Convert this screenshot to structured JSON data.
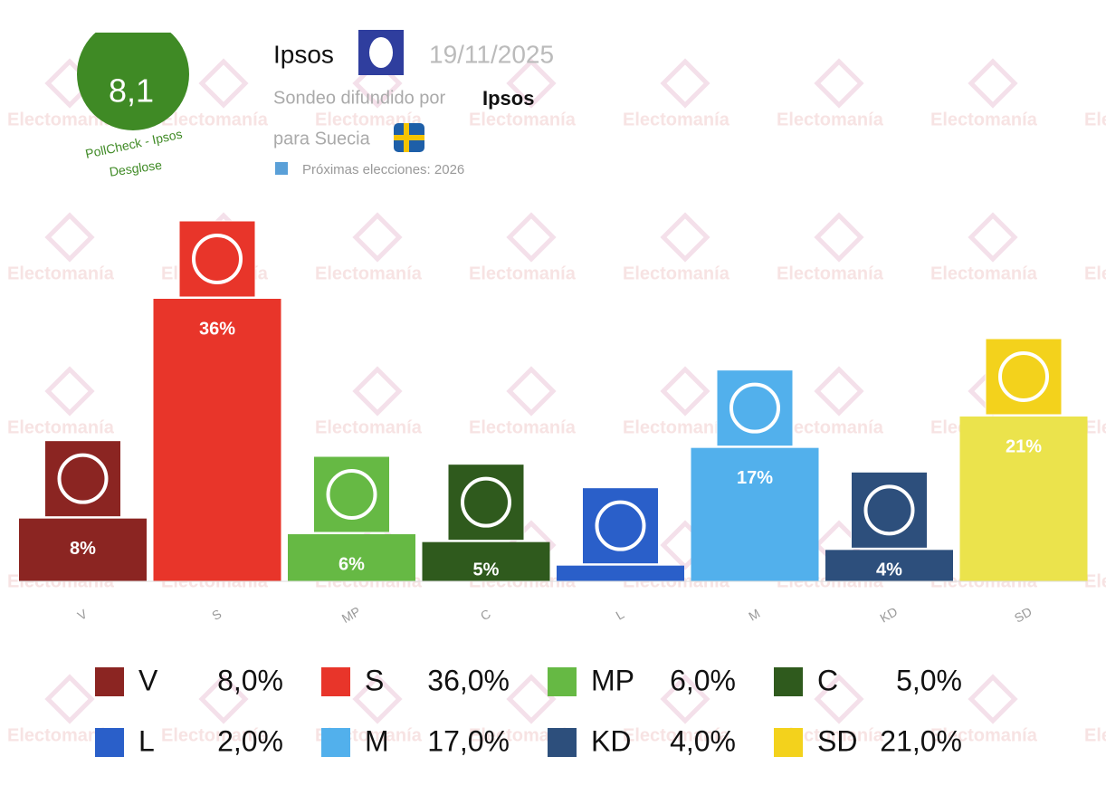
{
  "header": {
    "score": "8,1",
    "score_source": "PollCheck - Ipsos",
    "breakdown": "Desglose",
    "pollster": "Ipsos",
    "date": "19/11/2025",
    "published_by": "Sondeo difundido por",
    "publisher": "Ipsos",
    "country": "para Suecia",
    "next_elections": "Próximas elecciones: 2026"
  },
  "watermark": "Electomanía",
  "chart_data": {
    "type": "bar",
    "categories": [
      "V",
      "S",
      "MP",
      "C",
      "L",
      "M",
      "KD",
      "SD"
    ],
    "values": [
      8,
      36,
      6,
      5,
      2,
      17,
      4,
      21
    ],
    "value_labels": [
      "8%",
      "36%",
      "6%",
      "5%",
      null,
      "17%",
      "4%",
      "21%"
    ],
    "legend_value_labels": [
      "8,0%",
      "36,0%",
      "6,0%",
      "5,0%",
      "2,0%",
      "17,0%",
      "4,0%",
      "21,0%"
    ],
    "colors": [
      "#8b2522",
      "#e8352a",
      "#66b944",
      "#2f5a1d",
      "#2a5fc9",
      "#52b0ec",
      "#2d4f7c",
      "#ebe34c"
    ]
  }
}
